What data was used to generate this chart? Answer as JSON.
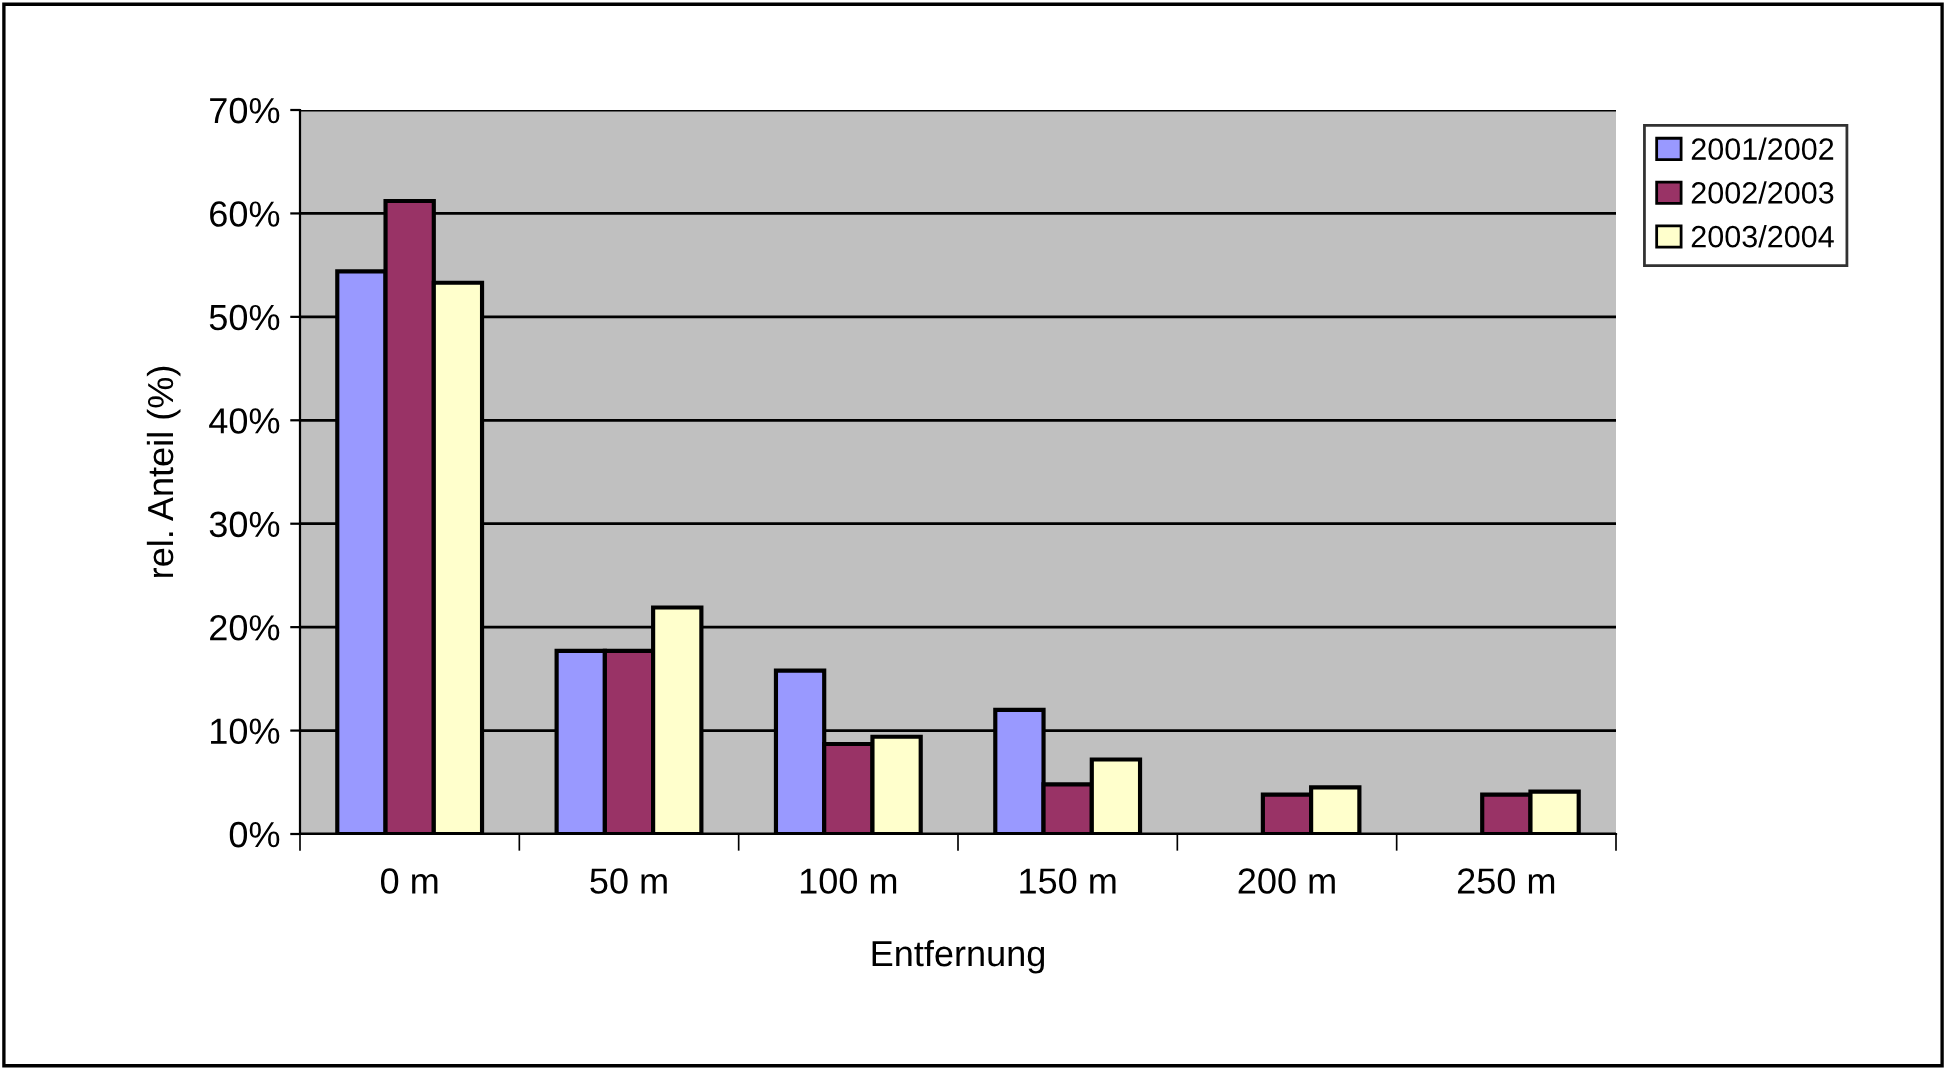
{
  "chart_data": {
    "type": "bar",
    "xlabel": "Entfernung",
    "ylabel": "rel. Anteil (%)",
    "categories": [
      "0 m",
      "50 m",
      "100 m",
      "150 m",
      "200 m",
      "250 m"
    ],
    "series": [
      {
        "name": "2001/2002",
        "color": "#9999ff",
        "values": [
          54.4,
          17.7,
          15.8,
          12.0,
          null,
          null
        ]
      },
      {
        "name": "2002/2003",
        "color": "#993366",
        "values": [
          61.2,
          17.7,
          8.7,
          4.8,
          3.8,
          3.8
        ]
      },
      {
        "name": "2003/2004",
        "color": "#ffffcc",
        "values": [
          53.3,
          21.9,
          9.4,
          7.2,
          4.5,
          4.1
        ]
      }
    ],
    "ylim": [
      0,
      70
    ],
    "yticks": [
      {
        "value": 0,
        "label": "0%"
      },
      {
        "value": 10,
        "label": "10%"
      },
      {
        "value": 20,
        "label": "20%"
      },
      {
        "value": 30,
        "label": "30%"
      },
      {
        "value": 40,
        "label": "40%"
      },
      {
        "value": 50,
        "label": "50%"
      },
      {
        "value": 60,
        "label": "60%"
      },
      {
        "value": 70,
        "label": "70%"
      }
    ],
    "grid": "y",
    "legend": "top right"
  }
}
